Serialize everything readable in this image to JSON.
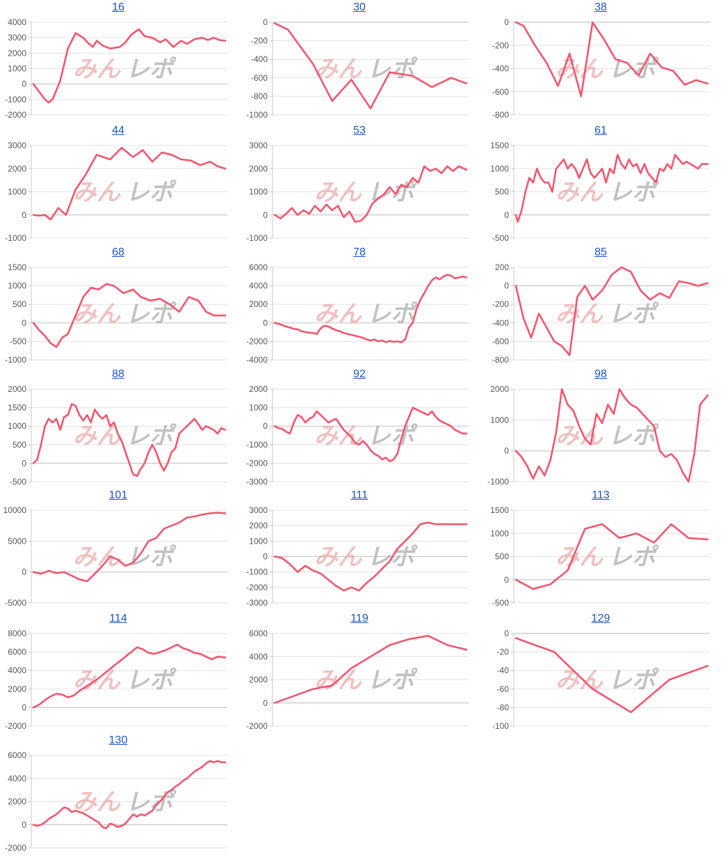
{
  "colors": {
    "line": "#f2566e",
    "grid": "#e3e3e3",
    "axis": "#c8c8c8",
    "watermark_red": "#e9a7a7",
    "watermark_gray": "#a8a8a8",
    "title": "#1a56c4"
  },
  "watermark": {
    "part1": "みん",
    "part2": "レポ"
  },
  "chart_data": [
    {
      "type": "line",
      "title": "16",
      "ylim": [
        -2000,
        4000
      ],
      "yticks": [
        "4000",
        "3000",
        "2000",
        "1000",
        "0",
        "-1000",
        "-2000"
      ],
      "x": [
        0,
        3,
        6,
        8,
        10,
        14,
        18,
        22,
        26,
        29,
        31,
        33,
        36,
        40,
        45,
        48,
        51,
        55,
        58,
        62,
        66,
        69,
        73,
        77,
        80,
        84,
        88,
        91,
        94,
        97,
        100
      ],
      "y": [
        0,
        -500,
        -1000,
        -1200,
        -1000,
        200,
        2300,
        3300,
        3000,
        2600,
        2400,
        2800,
        2500,
        2300,
        2400,
        2700,
        3200,
        3550,
        3100,
        3000,
        2700,
        2900,
        2400,
        2800,
        2600,
        2900,
        3000,
        2850,
        3000,
        2850,
        2800
      ]
    },
    {
      "type": "line",
      "title": "30",
      "ylim": [
        -1000,
        0
      ],
      "yticks": [
        "0",
        "-200",
        "-400",
        "-600",
        "-800",
        "-1000"
      ],
      "x": [
        0,
        7,
        20,
        30,
        40,
        50,
        60,
        72,
        82,
        92,
        100
      ],
      "y": [
        -10,
        -80,
        -450,
        -850,
        -620,
        -930,
        -540,
        -580,
        -700,
        -600,
        -660
      ]
    },
    {
      "type": "line",
      "title": "38",
      "ylim": [
        -800,
        0
      ],
      "yticks": [
        "0",
        "-200",
        "-400",
        "-600",
        "-800"
      ],
      "x": [
        0,
        4,
        10,
        16,
        22,
        28,
        34,
        40,
        46,
        52,
        58,
        64,
        70,
        76,
        82,
        88,
        94,
        100
      ],
      "y": [
        0,
        -30,
        -200,
        -350,
        -550,
        -270,
        -640,
        0,
        -150,
        -320,
        -350,
        -460,
        -270,
        -390,
        -420,
        -540,
        -500,
        -530
      ]
    },
    {
      "type": "line",
      "title": "44",
      "ylim": [
        -1000,
        3000
      ],
      "yticks": [
        "3000",
        "2000",
        "1000",
        "0",
        "-1000"
      ],
      "x": [
        0,
        3,
        6,
        9,
        13,
        17,
        22,
        27,
        33,
        40,
        46,
        52,
        57,
        62,
        67,
        72,
        77,
        82,
        87,
        92,
        96,
        100
      ],
      "y": [
        0,
        -30,
        0,
        -200,
        300,
        0,
        1100,
        1700,
        2600,
        2400,
        2900,
        2500,
        2800,
        2300,
        2700,
        2600,
        2400,
        2350,
        2150,
        2300,
        2100,
        2000
      ]
    },
    {
      "type": "line",
      "title": "53",
      "ylim": [
        -1000,
        3000
      ],
      "yticks": [
        "3000",
        "2000",
        "1000",
        "0",
        "-1000"
      ],
      "x": [
        0,
        3,
        6,
        9,
        12,
        15,
        18,
        21,
        24,
        27,
        30,
        33,
        36,
        39,
        42,
        45,
        48,
        51,
        54,
        57,
        60,
        63,
        66,
        69,
        72,
        75,
        78,
        81,
        84,
        87,
        90,
        93,
        96,
        100
      ],
      "y": [
        0,
        -150,
        50,
        300,
        0,
        200,
        50,
        400,
        150,
        450,
        200,
        400,
        -100,
        150,
        -300,
        -250,
        0,
        500,
        700,
        900,
        1200,
        900,
        1300,
        1200,
        1600,
        1400,
        2100,
        1900,
        2000,
        1800,
        2100,
        1900,
        2100,
        1950
      ]
    },
    {
      "type": "line",
      "title": "61",
      "ylim": [
        -500,
        1500
      ],
      "yticks": [
        "1500",
        "1000",
        "500",
        "0",
        "-500"
      ],
      "x": [
        0,
        1,
        3,
        5,
        7,
        9,
        11,
        13,
        15,
        17,
        19,
        21,
        23,
        25,
        27,
        29,
        31,
        33,
        35,
        37,
        39,
        41,
        43,
        45,
        47,
        49,
        51,
        53,
        55,
        57,
        59,
        61,
        63,
        65,
        67,
        69,
        71,
        73,
        75,
        77,
        79,
        81,
        83,
        85,
        87,
        89,
        91,
        93,
        95,
        97,
        100
      ],
      "y": [
        0,
        -150,
        100,
        500,
        800,
        700,
        1000,
        800,
        700,
        700,
        500,
        1000,
        1100,
        1200,
        1000,
        1100,
        1000,
        800,
        1000,
        1200,
        900,
        800,
        900,
        1000,
        700,
        1000,
        900,
        1300,
        1100,
        1000,
        1200,
        1050,
        1100,
        900,
        1100,
        900,
        800,
        700,
        1000,
        950,
        1100,
        1000,
        1300,
        1200,
        1100,
        1150,
        1100,
        1050,
        1000,
        1100,
        1100
      ]
    },
    {
      "type": "line",
      "title": "68",
      "ylim": [
        -1000,
        1500
      ],
      "yticks": [
        "1500",
        "1000",
        "500",
        "0",
        "-500",
        "-1000"
      ],
      "x": [
        0,
        3,
        6,
        9,
        12,
        15,
        18,
        22,
        26,
        30,
        34,
        38,
        42,
        47,
        52,
        56,
        61,
        66,
        71,
        76,
        81,
        86,
        90,
        94,
        100
      ],
      "y": [
        0,
        -200,
        -350,
        -550,
        -650,
        -400,
        -300,
        200,
        700,
        950,
        900,
        1050,
        1000,
        800,
        900,
        700,
        600,
        650,
        500,
        300,
        700,
        600,
        300,
        200,
        200
      ]
    },
    {
      "type": "line",
      "title": "78",
      "ylim": [
        -4000,
        6000
      ],
      "yticks": [
        "6000",
        "4000",
        "2000",
        "0",
        "-2000",
        "-4000"
      ],
      "x": [
        0,
        2,
        4,
        6,
        8,
        10,
        12,
        14,
        16,
        18,
        20,
        22,
        24,
        26,
        28,
        30,
        32,
        34,
        36,
        38,
        40,
        42,
        44,
        46,
        48,
        50,
        52,
        54,
        56,
        58,
        60,
        62,
        64,
        66,
        68,
        70,
        72,
        74,
        76,
        78,
        80,
        82,
        84,
        86,
        88,
        90,
        92,
        94,
        96,
        98,
        100
      ],
      "y": [
        0,
        -100,
        -250,
        -400,
        -500,
        -650,
        -700,
        -900,
        -1000,
        -1050,
        -1100,
        -1200,
        -600,
        -300,
        -400,
        -600,
        -800,
        -900,
        -1100,
        -1200,
        -1300,
        -1400,
        -1500,
        -1600,
        -1800,
        -1900,
        -1800,
        -2000,
        -1900,
        -2100,
        -1950,
        -2050,
        -2000,
        -2100,
        -1800,
        -500,
        0,
        1500,
        2500,
        3200,
        4000,
        4600,
        4900,
        4700,
        5000,
        5200,
        5100,
        4800,
        4900,
        5000,
        4900
      ]
    },
    {
      "type": "line",
      "title": "85",
      "ylim": [
        -800,
        200
      ],
      "yticks": [
        "200",
        "0",
        "-200",
        "-400",
        "-600",
        "-800"
      ],
      "x": [
        0,
        4,
        8,
        12,
        16,
        20,
        24,
        28,
        32,
        36,
        40,
        45,
        50,
        55,
        60,
        65,
        70,
        75,
        80,
        85,
        90,
        95,
        100
      ],
      "y": [
        0,
        -350,
        -560,
        -300,
        -450,
        -600,
        -650,
        -750,
        -120,
        0,
        -150,
        -50,
        120,
        200,
        150,
        -50,
        -150,
        -80,
        -130,
        50,
        30,
        0,
        30
      ]
    },
    {
      "type": "line",
      "title": "88",
      "ylim": [
        -500,
        2000
      ],
      "yticks": [
        "2000",
        "1500",
        "1000",
        "500",
        "0",
        "-500"
      ],
      "x": [
        0,
        2,
        4,
        6,
        8,
        10,
        12,
        14,
        16,
        18,
        20,
        22,
        24,
        26,
        28,
        30,
        32,
        34,
        36,
        38,
        40,
        42,
        44,
        46,
        48,
        50,
        52,
        54,
        56,
        58,
        60,
        62,
        64,
        66,
        68,
        70,
        72,
        74,
        76,
        78,
        80,
        82,
        84,
        86,
        88,
        90,
        92,
        94,
        96,
        98,
        100
      ],
      "y": [
        0,
        100,
        500,
        1000,
        1200,
        1100,
        1200,
        900,
        1250,
        1300,
        1600,
        1550,
        1300,
        1150,
        1300,
        1100,
        1450,
        1300,
        1200,
        1300,
        1000,
        1100,
        800,
        600,
        300,
        0,
        -300,
        -350,
        -150,
        0,
        300,
        500,
        300,
        0,
        -200,
        0,
        300,
        400,
        800,
        900,
        1000,
        1100,
        1200,
        1050,
        900,
        1000,
        950,
        900,
        800,
        950,
        900
      ]
    },
    {
      "type": "line",
      "title": "92",
      "ylim": [
        -3000,
        2000
      ],
      "yticks": [
        "2000",
        "1000",
        "0",
        "-1000",
        "-2000",
        "-3000"
      ],
      "x": [
        0,
        2,
        4,
        6,
        8,
        10,
        12,
        14,
        16,
        18,
        20,
        22,
        24,
        26,
        28,
        30,
        32,
        34,
        36,
        38,
        40,
        42,
        44,
        46,
        48,
        50,
        52,
        54,
        56,
        58,
        60,
        62,
        64,
        66,
        68,
        70,
        72,
        74,
        76,
        78,
        80,
        82,
        84,
        86,
        88,
        90,
        92,
        94,
        96,
        98,
        100
      ],
      "y": [
        0,
        -100,
        -150,
        -300,
        -400,
        200,
        600,
        500,
        200,
        400,
        500,
        800,
        600,
        400,
        200,
        300,
        400,
        100,
        -200,
        -400,
        -600,
        -900,
        -1000,
        -800,
        -1000,
        -1300,
        -1500,
        -1600,
        -1800,
        -1700,
        -1900,
        -1800,
        -1500,
        -700,
        0,
        500,
        1000,
        900,
        800,
        700,
        600,
        800,
        500,
        300,
        200,
        100,
        0,
        -200,
        -300,
        -400,
        -400
      ]
    },
    {
      "type": "line",
      "title": "98",
      "ylim": [
        -1000,
        2000
      ],
      "yticks": [
        "2000",
        "1000",
        "0",
        "-1000"
      ],
      "x": [
        0,
        3,
        6,
        9,
        12,
        15,
        18,
        21,
        24,
        27,
        30,
        33,
        36,
        39,
        42,
        45,
        48,
        51,
        54,
        57,
        60,
        63,
        66,
        69,
        72,
        75,
        78,
        81,
        84,
        87,
        90,
        93,
        96,
        100
      ],
      "y": [
        0,
        -200,
        -500,
        -900,
        -500,
        -800,
        -300,
        600,
        2000,
        1500,
        1300,
        800,
        400,
        200,
        1200,
        900,
        1500,
        1200,
        2000,
        1700,
        1500,
        1400,
        1200,
        1000,
        800,
        0,
        -200,
        -100,
        -300,
        -700,
        -1000,
        -100,
        1500,
        1800
      ]
    },
    {
      "type": "line",
      "title": "101",
      "ylim": [
        -5000,
        10000
      ],
      "yticks": [
        "10000",
        "5000",
        "0",
        "-5000"
      ],
      "x": [
        0,
        4,
        8,
        12,
        16,
        20,
        24,
        28,
        32,
        36,
        40,
        44,
        48,
        52,
        56,
        60,
        64,
        68,
        72,
        76,
        80,
        84,
        88,
        92,
        96,
        100
      ],
      "y": [
        0,
        -300,
        200,
        -200,
        0,
        -600,
        -1200,
        -1500,
        -300,
        1000,
        2500,
        2000,
        1000,
        1500,
        3000,
        5000,
        5500,
        7000,
        7500,
        8000,
        8800,
        9000,
        9300,
        9500,
        9600,
        9500
      ]
    },
    {
      "type": "line",
      "title": "111",
      "ylim": [
        -3000,
        3000
      ],
      "yticks": [
        "3000",
        "2000",
        "1000",
        "0",
        "-1000",
        "-2000",
        "-3000"
      ],
      "x": [
        0,
        4,
        8,
        12,
        16,
        20,
        24,
        28,
        32,
        36,
        40,
        44,
        48,
        52,
        56,
        60,
        64,
        68,
        72,
        76,
        80,
        84,
        88,
        92,
        96,
        100
      ],
      "y": [
        0,
        -100,
        -500,
        -1000,
        -600,
        -900,
        -1100,
        -1500,
        -1900,
        -2200,
        -2000,
        -2200,
        -1700,
        -1300,
        -800,
        -300,
        500,
        1000,
        1500,
        2100,
        2200,
        2100,
        2100,
        2100,
        2100,
        2100
      ]
    },
    {
      "type": "line",
      "title": "113",
      "ylim": [
        -500,
        1500
      ],
      "yticks": [
        "1500",
        "1000",
        "500",
        "0",
        "-500"
      ],
      "x": [
        0,
        9,
        18,
        27,
        36,
        45,
        54,
        63,
        72,
        81,
        90,
        100
      ],
      "y": [
        0,
        -200,
        -100,
        200,
        1100,
        1200,
        900,
        1000,
        800,
        1200,
        900,
        870
      ]
    },
    {
      "type": "line",
      "title": "114",
      "ylim": [
        -2000,
        8000
      ],
      "yticks": [
        "8000",
        "6000",
        "4000",
        "2000",
        "0",
        "-2000"
      ],
      "x": [
        0,
        3,
        6,
        9,
        12,
        15,
        18,
        21,
        24,
        27,
        30,
        33,
        36,
        39,
        42,
        45,
        48,
        51,
        54,
        57,
        60,
        63,
        66,
        69,
        72,
        75,
        78,
        81,
        84,
        87,
        90,
        93,
        96,
        100
      ],
      "y": [
        0,
        300,
        800,
        1200,
        1500,
        1400,
        1100,
        1300,
        1800,
        2200,
        2600,
        3000,
        3500,
        4000,
        4500,
        5000,
        5500,
        6000,
        6500,
        6300,
        5900,
        5800,
        6000,
        6200,
        6500,
        6800,
        6400,
        6200,
        5900,
        5800,
        5500,
        5200,
        5500,
        5400
      ]
    },
    {
      "type": "line",
      "title": "119",
      "ylim": [
        -2000,
        6000
      ],
      "yticks": [
        "6000",
        "4000",
        "2000",
        "0",
        "-2000"
      ],
      "x": [
        0,
        10,
        20,
        30,
        40,
        50,
        60,
        70,
        80,
        90,
        100
      ],
      "y": [
        0,
        600,
        1200,
        1500,
        3000,
        4000,
        5000,
        5500,
        5800,
        5000,
        4600
      ]
    },
    {
      "type": "line",
      "title": "129",
      "ylim": [
        -100,
        0
      ],
      "yticks": [
        "0",
        "-20",
        "-40",
        "-60",
        "-80",
        "-100"
      ],
      "x": [
        0,
        20,
        40,
        60,
        80,
        100
      ],
      "y": [
        -5,
        -20,
        -60,
        -85,
        -50,
        -35
      ]
    },
    {
      "type": "line",
      "title": "130",
      "ylim": [
        -2000,
        6000
      ],
      "yticks": [
        "6000",
        "4000",
        "2000",
        "0",
        "-2000"
      ],
      "x": [
        0,
        2,
        4,
        6,
        8,
        10,
        12,
        14,
        16,
        18,
        20,
        22,
        24,
        26,
        28,
        30,
        32,
        34,
        36,
        38,
        40,
        42,
        44,
        46,
        48,
        50,
        52,
        54,
        56,
        58,
        60,
        62,
        64,
        66,
        68,
        70,
        72,
        74,
        76,
        78,
        80,
        82,
        84,
        86,
        88,
        90,
        92,
        94,
        96,
        98,
        100
      ],
      "y": [
        0,
        -100,
        0,
        200,
        500,
        700,
        900,
        1200,
        1500,
        1400,
        1100,
        1200,
        1100,
        1000,
        800,
        600,
        400,
        200,
        -200,
        -300,
        100,
        0,
        -200,
        -100,
        100,
        500,
        900,
        700,
        900,
        800,
        1000,
        1200,
        1700,
        2000,
        2400,
        2800,
        3000,
        3300,
        3500,
        3800,
        4000,
        4300,
        4600,
        4800,
        5000,
        5300,
        5500,
        5400,
        5500,
        5400,
        5400
      ]
    }
  ]
}
